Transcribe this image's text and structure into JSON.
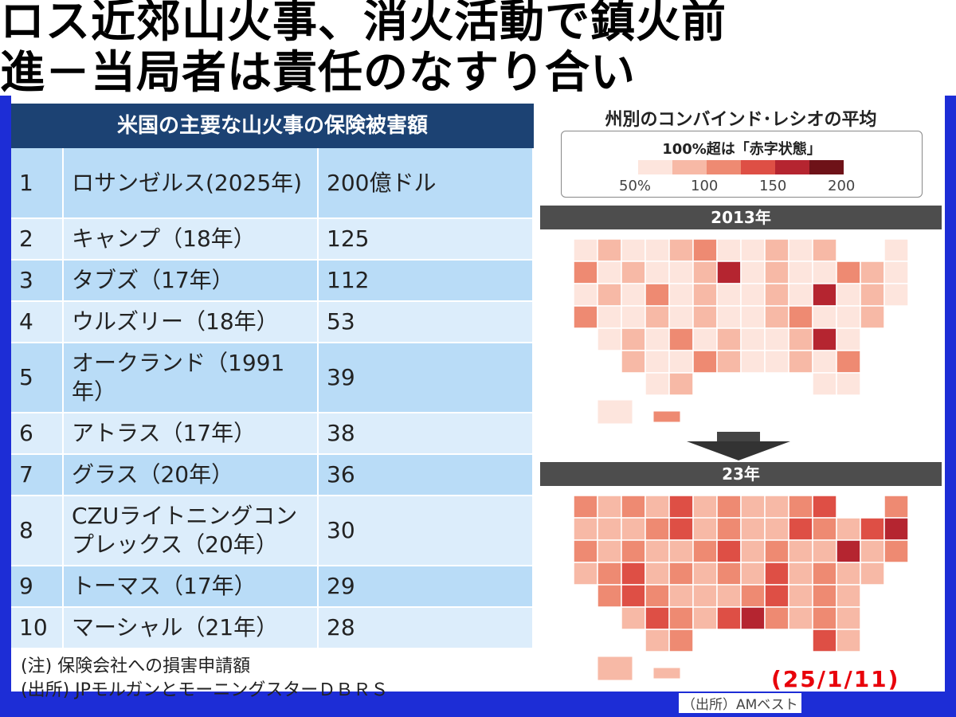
{
  "headline": {
    "line1": "ロス近郊山火事、消火活動で鎮火前",
    "line2": "進－当局者は責任のなすり合い"
  },
  "table": {
    "title": "米国の主要な山火事の保険被害額",
    "rows": [
      {
        "rank": "1",
        "name": "ロサンゼルス(2025年)",
        "amount": "200億ドル"
      },
      {
        "rank": "2",
        "name": "キャンプ（18年）",
        "amount": "125"
      },
      {
        "rank": "3",
        "name": "タブズ（17年）",
        "amount": "112"
      },
      {
        "rank": "4",
        "name": "ウルズリー（18年）",
        "amount": "53"
      },
      {
        "rank": "5",
        "name": "オークランド（1991年）",
        "amount": "39"
      },
      {
        "rank": "6",
        "name": "アトラス（17年）",
        "amount": "38"
      },
      {
        "rank": "7",
        "name": "グラス（20年）",
        "amount": "36"
      },
      {
        "rank": "8",
        "name": "CZUライトニングコンプレックス（20年）",
        "amount": "30"
      },
      {
        "rank": "9",
        "name": "トーマス（17年）",
        "amount": "29"
      },
      {
        "rank": "10",
        "name": "マーシャル（21年）",
        "amount": "28"
      }
    ],
    "note": "(注) 保険会社への損害申請額",
    "source": "(出所) JPモルガンとモーニングスターＤＢＲＳ"
  },
  "maps": {
    "title": "州別のコンバインド･レシオの平均",
    "legend_title": "100%超は「赤字状態」",
    "legend_ticks": [
      "50%",
      "100",
      "150",
      "200"
    ],
    "legend_colors": [
      "#fde5dd",
      "#f7b9a6",
      "#ee8a72",
      "#de4f45",
      "#b52530",
      "#6e1218"
    ],
    "year_top": "2013年",
    "year_bottom": "23年",
    "source": "（出所）AMベスト",
    "date": "(25/1/11)"
  }
}
